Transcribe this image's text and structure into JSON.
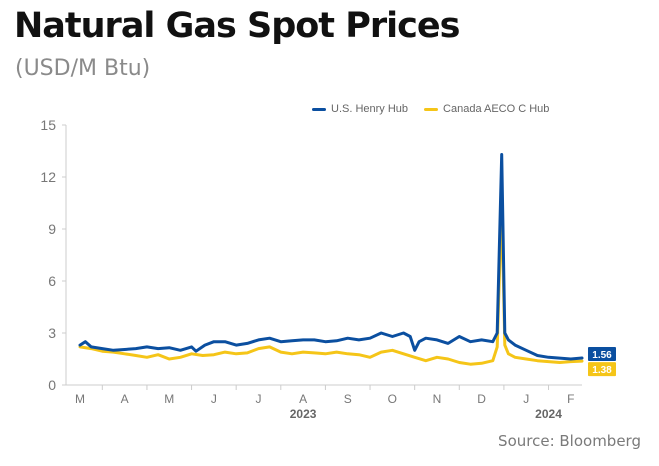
{
  "header": {
    "title": "Natural Gas Spot Prices",
    "subtitle": "(USD/M Btu)",
    "source": "Source: Bloomberg"
  },
  "colors": {
    "henry_hub": "#0b4fa0",
    "aeco": "#f5c518",
    "axis": "#cccccc",
    "tick_text": "#777777"
  },
  "chart_data": {
    "type": "line",
    "title": "Natural Gas Spot Prices",
    "subtitle": "(USD/M Btu)",
    "ylim": [
      0,
      15
    ],
    "yticks": [
      0,
      3,
      6,
      9,
      12,
      15
    ],
    "x_month_labels": [
      "M",
      "A",
      "M",
      "J",
      "J",
      "A",
      "S",
      "O",
      "N",
      "D",
      "J",
      "F"
    ],
    "x_year_labels": [
      {
        "label": "2023",
        "month_index": 5
      },
      {
        "label": "2024",
        "month_index": 10.5
      }
    ],
    "x_range_months": [
      0,
      11.25
    ],
    "legend_position": "top-right",
    "series": [
      {
        "name": "U.S. Henry Hub",
        "color": "#0b4fa0",
        "end_label": "1.56",
        "points": [
          [
            0.0,
            2.3
          ],
          [
            0.12,
            2.5
          ],
          [
            0.25,
            2.2
          ],
          [
            0.5,
            2.1
          ],
          [
            0.75,
            2.0
          ],
          [
            1.0,
            2.05
          ],
          [
            1.25,
            2.1
          ],
          [
            1.5,
            2.2
          ],
          [
            1.75,
            2.1
          ],
          [
            2.0,
            2.15
          ],
          [
            2.25,
            2.0
          ],
          [
            2.5,
            2.2
          ],
          [
            2.6,
            1.95
          ],
          [
            2.8,
            2.3
          ],
          [
            3.0,
            2.5
          ],
          [
            3.25,
            2.5
          ],
          [
            3.5,
            2.3
          ],
          [
            3.75,
            2.4
          ],
          [
            4.0,
            2.6
          ],
          [
            4.25,
            2.7
          ],
          [
            4.5,
            2.5
          ],
          [
            4.75,
            2.55
          ],
          [
            5.0,
            2.6
          ],
          [
            5.25,
            2.6
          ],
          [
            5.5,
            2.5
          ],
          [
            5.75,
            2.55
          ],
          [
            6.0,
            2.7
          ],
          [
            6.25,
            2.6
          ],
          [
            6.5,
            2.7
          ],
          [
            6.75,
            3.0
          ],
          [
            7.0,
            2.8
          ],
          [
            7.25,
            3.0
          ],
          [
            7.4,
            2.8
          ],
          [
            7.5,
            2.0
          ],
          [
            7.6,
            2.5
          ],
          [
            7.75,
            2.7
          ],
          [
            8.0,
            2.6
          ],
          [
            8.25,
            2.4
          ],
          [
            8.5,
            2.8
          ],
          [
            8.75,
            2.5
          ],
          [
            9.0,
            2.6
          ],
          [
            9.25,
            2.5
          ],
          [
            9.35,
            3.0
          ],
          [
            9.45,
            13.3
          ],
          [
            9.52,
            3.0
          ],
          [
            9.6,
            2.6
          ],
          [
            9.75,
            2.3
          ],
          [
            10.0,
            2.0
          ],
          [
            10.25,
            1.7
          ],
          [
            10.5,
            1.6
          ],
          [
            10.75,
            1.55
          ],
          [
            11.0,
            1.5
          ],
          [
            11.25,
            1.56
          ]
        ]
      },
      {
        "name": "Canada AECO C Hub",
        "color": "#f5c518",
        "end_label": "1.38",
        "points": [
          [
            0.0,
            2.2
          ],
          [
            0.25,
            2.1
          ],
          [
            0.5,
            1.95
          ],
          [
            0.75,
            1.9
          ],
          [
            1.0,
            1.8
          ],
          [
            1.25,
            1.7
          ],
          [
            1.5,
            1.6
          ],
          [
            1.75,
            1.75
          ],
          [
            2.0,
            1.5
          ],
          [
            2.25,
            1.6
          ],
          [
            2.5,
            1.8
          ],
          [
            2.75,
            1.7
          ],
          [
            3.0,
            1.75
          ],
          [
            3.25,
            1.9
          ],
          [
            3.5,
            1.8
          ],
          [
            3.75,
            1.85
          ],
          [
            4.0,
            2.1
          ],
          [
            4.25,
            2.2
          ],
          [
            4.5,
            1.9
          ],
          [
            4.75,
            1.8
          ],
          [
            5.0,
            1.9
          ],
          [
            5.25,
            1.85
          ],
          [
            5.5,
            1.8
          ],
          [
            5.75,
            1.9
          ],
          [
            6.0,
            1.8
          ],
          [
            6.25,
            1.75
          ],
          [
            6.5,
            1.6
          ],
          [
            6.75,
            1.9
          ],
          [
            7.0,
            2.0
          ],
          [
            7.25,
            1.8
          ],
          [
            7.5,
            1.6
          ],
          [
            7.75,
            1.4
          ],
          [
            8.0,
            1.6
          ],
          [
            8.25,
            1.5
          ],
          [
            8.5,
            1.3
          ],
          [
            8.75,
            1.2
          ],
          [
            9.0,
            1.25
          ],
          [
            9.25,
            1.4
          ],
          [
            9.35,
            2.2
          ],
          [
            9.45,
            10.6
          ],
          [
            9.52,
            2.3
          ],
          [
            9.6,
            1.8
          ],
          [
            9.75,
            1.6
          ],
          [
            10.0,
            1.5
          ],
          [
            10.25,
            1.4
          ],
          [
            10.5,
            1.35
          ],
          [
            10.75,
            1.3
          ],
          [
            11.0,
            1.35
          ],
          [
            11.25,
            1.38
          ]
        ]
      }
    ]
  }
}
